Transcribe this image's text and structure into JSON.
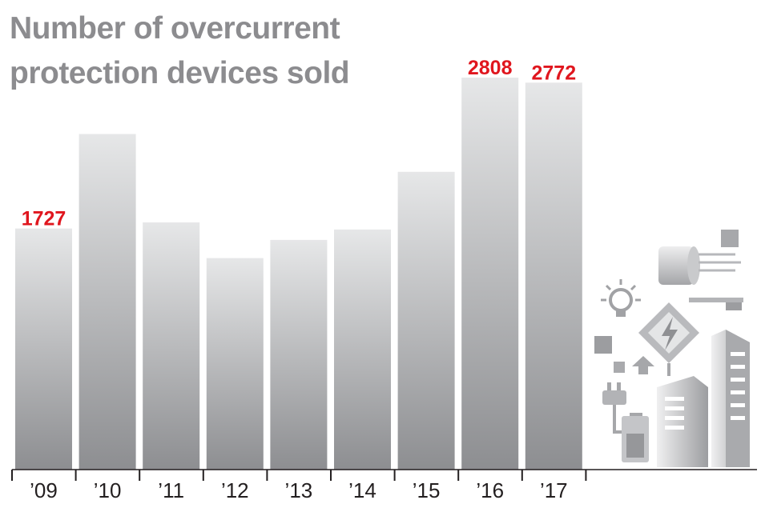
{
  "chart_data": {
    "type": "bar",
    "title": "Number of overcurrent protection devices sold",
    "categories": [
      "’09",
      "’10",
      "’11",
      "’12",
      "’13",
      "’14",
      "’15",
      "’16",
      "’17"
    ],
    "values": [
      1727,
      2404,
      1771,
      1515,
      1645,
      1720,
      2133,
      2808,
      2772
    ],
    "data_labels": [
      "1727",
      "",
      "",
      "",
      "",
      "",
      "",
      "2808",
      "2772"
    ],
    "ylim": [
      0,
      2808
    ],
    "xlabel": "",
    "ylabel": "",
    "grid": false,
    "colors": {
      "bar_top": "#e6e7e8",
      "bar_bottom": "#8d8e91",
      "label": "#e0161e",
      "title": "#8c8c8f",
      "axis": "#231f20"
    }
  },
  "decoration": {
    "icons": [
      "energy-icon-cluster",
      "lightbulb-icon",
      "lightning-warning-icon",
      "plug-icon",
      "battery-icon",
      "wind-turbine-icon",
      "building-icon",
      "skyscraper-icon"
    ]
  }
}
